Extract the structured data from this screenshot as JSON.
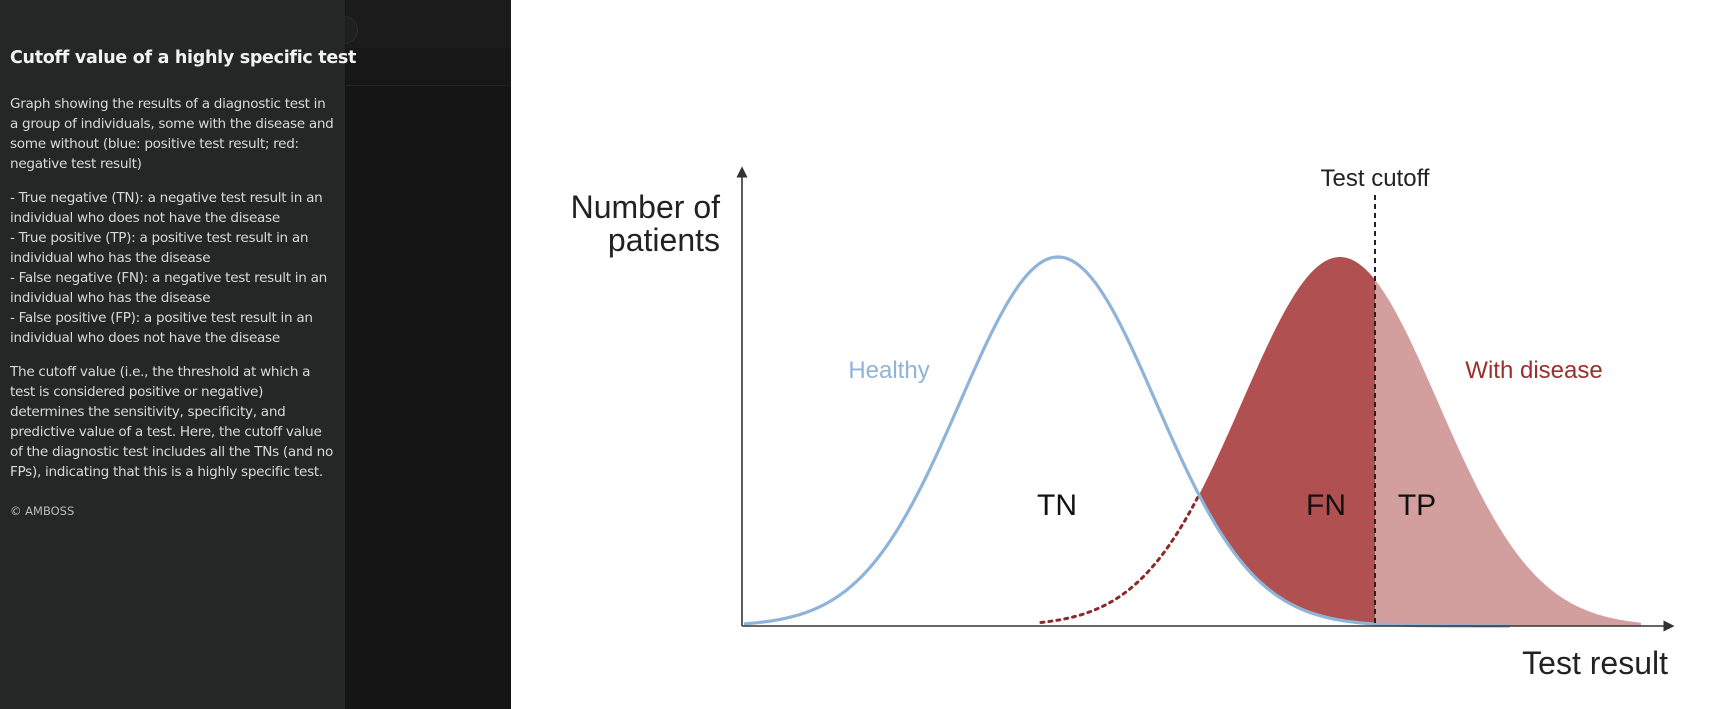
{
  "caption": {
    "title": "Cutoff value of a highly specific test",
    "intro": "Graph showing the results of a diagnostic test in a group of individuals, some with the disease and some without (blue: positive test result; red: negative test result)",
    "definitions": [
      "- True negative (TN): a negative test result in an individual who does not have the disease",
      "- True positive (TP): a positive test result in an individual who has the disease",
      "- False negative (FN): a negative test result in an individual who has the disease",
      "- False positive (FP): a positive test result in an individual who does not have the disease"
    ],
    "explanation": "The cutoff value (i.e., the threshold at which a test is considered positive or negative) determines the sensitivity, specificity, and predictive value of a test. Here, the cutoff value of the diagnostic test includes all the TNs (and no FPs), indicating that this is a highly specific test.",
    "copyright": "© AMBOSS"
  },
  "figure": {
    "y_axis_label_line1": "Number of",
    "y_axis_label_line2": "patients",
    "x_axis_label": "Test result",
    "cutoff_label": "Test cutoff",
    "healthy_label": "Healthy",
    "disease_label": "With disease",
    "tn_label": "TN",
    "fn_label": "FN",
    "tp_label": "TP",
    "colors": {
      "healthy": "#8fb4d9",
      "disease_dark": "#b05050",
      "disease_light": "#d39e9e",
      "disease_text": "#9b2e2e",
      "dotted": "#8c2a2a",
      "axis": "#333333",
      "text": "#111111"
    }
  }
}
